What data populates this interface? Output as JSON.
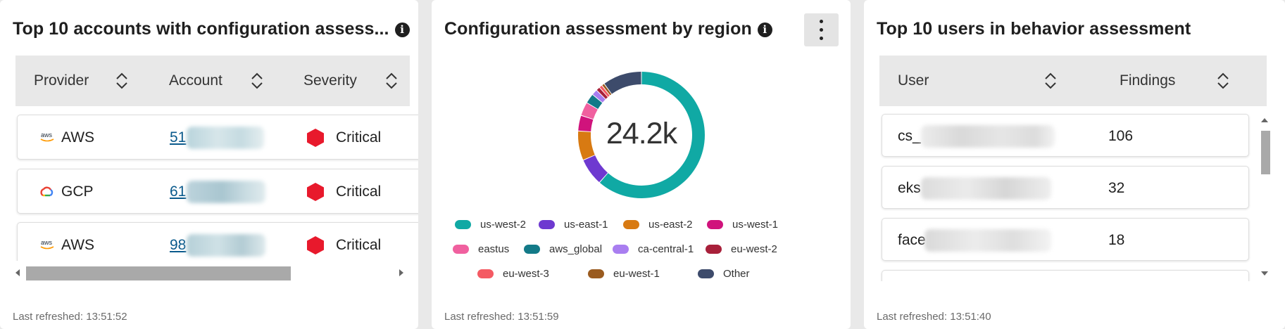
{
  "panels": {
    "accounts": {
      "title": "Top 10 accounts with configuration assess...",
      "columns": [
        "Provider",
        "Account",
        "Severity"
      ],
      "rows": [
        {
          "provider": "AWS",
          "account": "51",
          "severity": "Critical"
        },
        {
          "provider": "GCP",
          "account": "61",
          "severity": "Critical"
        },
        {
          "provider": "AWS",
          "account": "98",
          "severity": "Critical"
        }
      ],
      "footer": "Last refreshed: 13:51:52"
    },
    "region": {
      "title": "Configuration assessment by region",
      "center_value": "24.2k",
      "footer": "Last refreshed: 13:51:59"
    },
    "users": {
      "title": "Top 10 users in behavior assessment",
      "columns": [
        "User",
        "Findings"
      ],
      "rows": [
        {
          "user": "cs_",
          "findings": "106"
        },
        {
          "user": "eks",
          "findings": "32"
        },
        {
          "user": "face",
          "findings": "18"
        }
      ],
      "footer": "Last refreshed: 13:51:40"
    }
  },
  "icons": {
    "info": "info-icon",
    "sort": "sort-icon",
    "aws": "aws-logo-icon",
    "gcp": "gcp-logo-icon",
    "severity": "critical-hexagon-icon",
    "menu": "kebab-menu-icon",
    "scroll_left": "scroll-left-arrow-icon",
    "scroll_right": "scroll-right-arrow-icon",
    "scroll_up": "scroll-up-arrow-icon",
    "scroll_down": "scroll-down-arrow-icon"
  },
  "colors": {
    "critical": "#e8192c",
    "link": "#0a5a8c"
  },
  "chart_data": {
    "type": "pie",
    "categories": [
      "us-west-2",
      "us-east-1",
      "us-east-2",
      "us-west-1",
      "eastus",
      "aws_global",
      "ca-central-1",
      "eu-west-2",
      "eu-west-3",
      "eu-west-1",
      "Other"
    ],
    "values": [
      61.5,
      7.0,
      7.5,
      4.0,
      3.5,
      2.5,
      1.5,
      1.0,
      0.8,
      0.7,
      10.0
    ],
    "colors": [
      "#10a9a4",
      "#6e39d0",
      "#d87a12",
      "#d0137c",
      "#f0609f",
      "#137a88",
      "#a97ef0",
      "#a8203a",
      "#f45a63",
      "#9a5b1f",
      "#3d4b6b"
    ],
    "legend_position": "bottom"
  }
}
